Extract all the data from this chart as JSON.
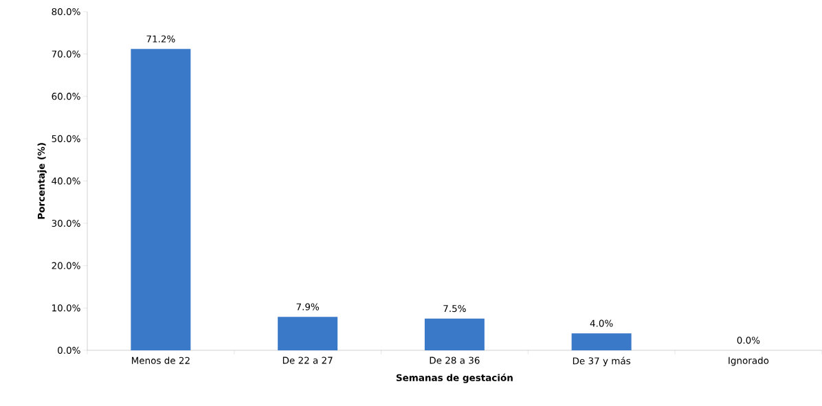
{
  "chart_data": {
    "type": "bar",
    "xlabel": "Semanas de gestación",
    "ylabel": "Porcentaje (%)",
    "categories": [
      "Menos de 22",
      "De 22 a 27",
      "De 28 a 36",
      "De 37 y más",
      "Ignorado"
    ],
    "values": [
      71.2,
      7.9,
      7.5,
      4.0,
      0.0
    ],
    "value_labels": [
      "71.2%",
      "7.9%",
      "7.5%",
      "4.0%",
      "0.0%"
    ],
    "color": "#3a78c8",
    "ylim": [
      0,
      80
    ],
    "yticks": [
      {
        "value": 0,
        "label": "0.0%"
      },
      {
        "value": 10,
        "label": "10.0%"
      },
      {
        "value": 20,
        "label": "20.0%"
      },
      {
        "value": 30,
        "label": "30.0%"
      },
      {
        "value": 40,
        "label": "40.0%"
      },
      {
        "value": 50,
        "label": "50.0%"
      },
      {
        "value": 60,
        "label": "60.0%"
      },
      {
        "value": 70,
        "label": "70.0%"
      },
      {
        "value": 80,
        "label": "80.0%"
      }
    ],
    "grid": false
  }
}
